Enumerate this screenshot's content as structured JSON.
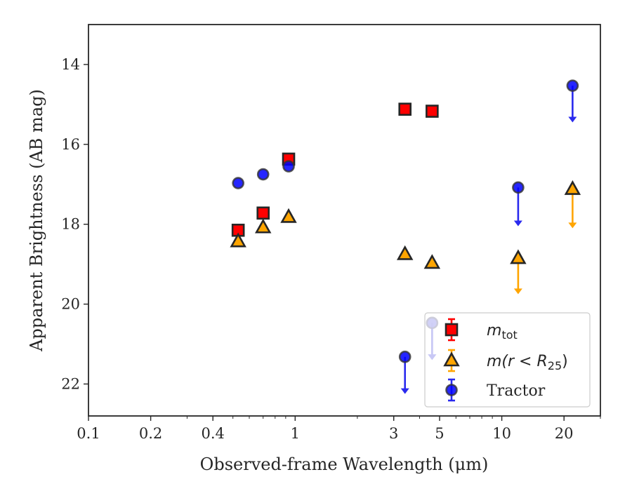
{
  "chart_data": {
    "type": "scatter",
    "title": "",
    "xlabel": "Observed-frame Wavelength (μm)",
    "ylabel": "Apparent Brightness (AB mag)",
    "xscale": "log",
    "xlim": [
      0.1,
      30
    ],
    "ylim": [
      22.8,
      13.0
    ],
    "y_inverted": true,
    "x_ticks": [
      0.1,
      0.2,
      0.4,
      1,
      3,
      5,
      10,
      20
    ],
    "x_tick_labels": [
      "0.1",
      "0.2",
      "0.4",
      "1",
      "3",
      "5",
      "10",
      "20"
    ],
    "y_ticks": [
      14,
      16,
      18,
      20,
      22
    ],
    "y_tick_labels": [
      "14",
      "16",
      "18",
      "20",
      "22"
    ],
    "grid": false,
    "legend_position": "lower-right",
    "series": [
      {
        "name": "m_tot",
        "legend_main": "m",
        "legend_sub": "tot",
        "marker": "square",
        "color": "#ff0000",
        "edge_color": "#262626",
        "points": [
          {
            "x": 0.53,
            "y": 18.15
          },
          {
            "x": 0.7,
            "y": 17.72
          },
          {
            "x": 0.93,
            "y": 16.37
          },
          {
            "x": 3.4,
            "y": 15.12
          },
          {
            "x": 4.6,
            "y": 15.17
          }
        ],
        "upper_limits": []
      },
      {
        "name": "m(r < R_25)",
        "legend_main": "m(r < R",
        "legend_sub": "25",
        "legend_tail": ")",
        "marker": "triangle",
        "color": "#ffa500",
        "edge_color": "#262626",
        "points": [
          {
            "x": 0.53,
            "y": 18.43
          },
          {
            "x": 0.7,
            "y": 18.08
          },
          {
            "x": 0.93,
            "y": 17.82
          },
          {
            "x": 3.4,
            "y": 18.75
          },
          {
            "x": 4.6,
            "y": 18.97
          }
        ],
        "upper_limits": [
          {
            "x": 12.0,
            "y": 18.85,
            "arrow_to": 19.75
          },
          {
            "x": 22.0,
            "y": 17.12,
            "arrow_to": 18.1
          }
        ]
      },
      {
        "name": "Tractor",
        "marker": "circle",
        "color": "#0000ff",
        "edge_color": "#333333",
        "points": [
          {
            "x": 0.53,
            "y": 16.97
          },
          {
            "x": 0.7,
            "y": 16.75
          },
          {
            "x": 0.93,
            "y": 16.55
          }
        ],
        "upper_limits": [
          {
            "x": 3.4,
            "y": 21.32,
            "arrow_to": 22.25
          },
          {
            "x": 4.6,
            "y": 20.47,
            "arrow_to": 21.4
          },
          {
            "x": 12.0,
            "y": 17.08,
            "arrow_to": 18.05
          },
          {
            "x": 22.0,
            "y": 14.53,
            "arrow_to": 15.45
          }
        ]
      }
    ]
  }
}
